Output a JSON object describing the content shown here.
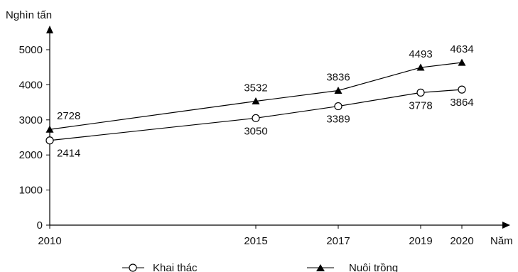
{
  "chart_data": {
    "type": "line",
    "ylabel": "Nghìn tấn",
    "xlabel": "Năm",
    "x": [
      2010,
      2015,
      2017,
      2019,
      2020
    ],
    "ylim": [
      0,
      5000
    ],
    "yticks": [
      0,
      1000,
      2000,
      3000,
      4000,
      5000
    ],
    "xticks": [
      2010,
      2015,
      2017,
      2019,
      2020
    ],
    "grid": false,
    "legend_position": "bottom",
    "series": [
      {
        "name": "Khai thác",
        "marker": "open-circle",
        "values": [
          2414,
          3050,
          3389,
          3778,
          3864
        ]
      },
      {
        "name": "Nuôi trồng",
        "marker": "filled-triangle",
        "values": [
          2728,
          3532,
          3836,
          4493,
          4634
        ]
      }
    ],
    "colors": {
      "line": "#000000",
      "text": "#111111"
    }
  }
}
